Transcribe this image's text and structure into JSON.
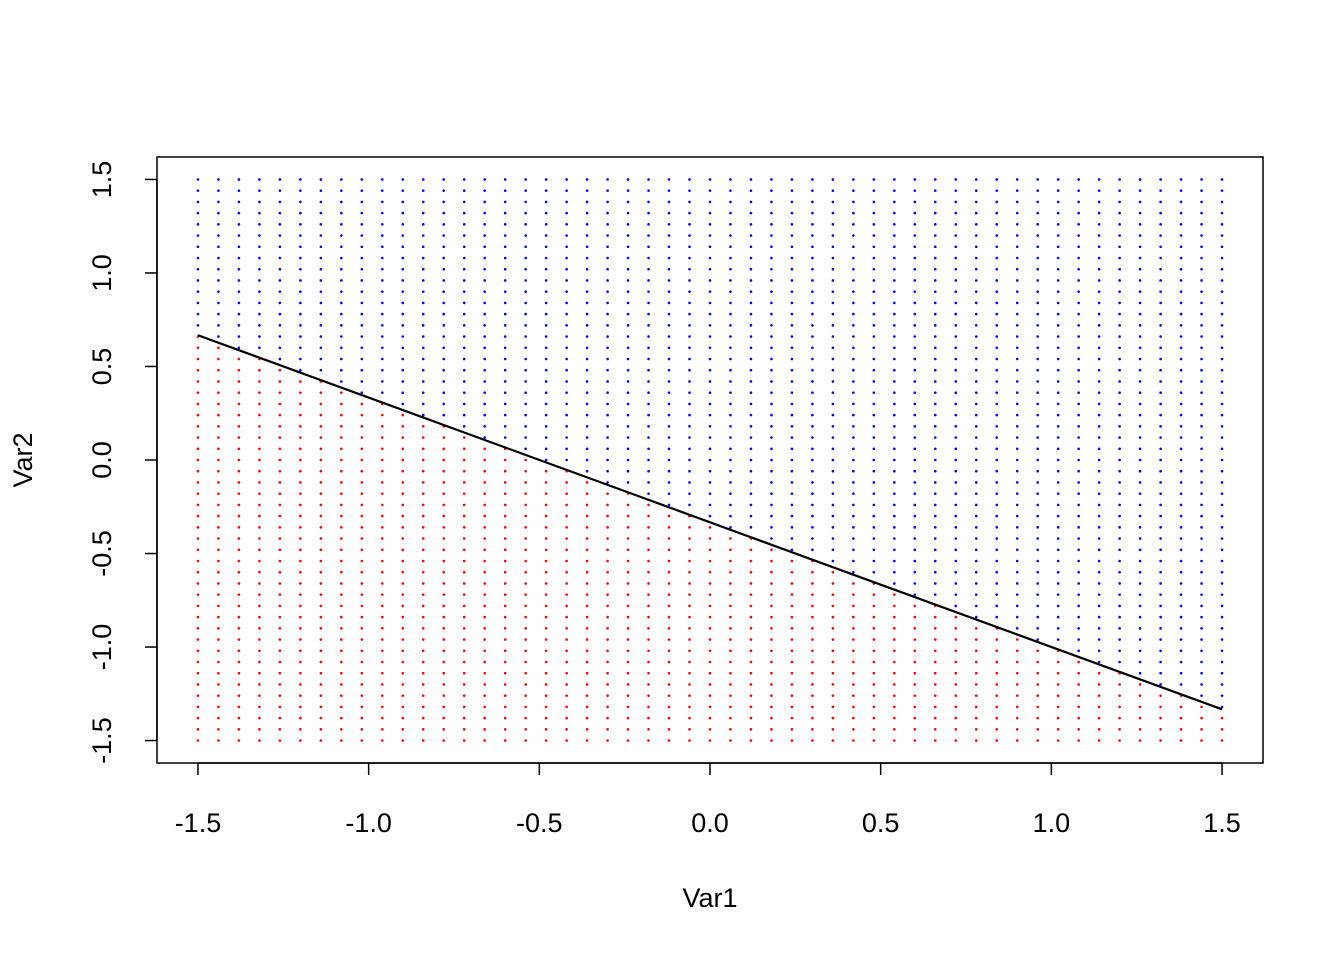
{
  "chart_data": {
    "type": "scatter",
    "xlabel": "Var1",
    "ylabel": "Var2",
    "grid_x": [
      -1.5,
      -1.44,
      -1.38,
      -1.32,
      -1.26,
      -1.2,
      -1.14,
      -1.08,
      -1.02,
      -0.96,
      -0.9,
      -0.84,
      -0.78,
      -0.72,
      -0.66,
      -0.6,
      -0.54,
      -0.48,
      -0.42,
      -0.36,
      -0.3,
      -0.24,
      -0.18,
      -0.12,
      -0.06,
      0,
      0.06,
      0.12,
      0.18,
      0.24,
      0.3,
      0.36,
      0.42,
      0.48,
      0.54,
      0.6,
      0.66,
      0.72,
      0.78,
      0.84,
      0.9,
      0.96,
      1.02,
      1.08,
      1.14,
      1.2,
      1.26,
      1.32,
      1.38,
      1.44,
      1.5
    ],
    "grid_y": [
      -1.5,
      -1.44,
      -1.38,
      -1.32,
      -1.26,
      -1.2,
      -1.14,
      -1.08,
      -1.02,
      -0.96,
      -0.9,
      -0.84,
      -0.78,
      -0.72,
      -0.66,
      -0.6,
      -0.54,
      -0.48,
      -0.42,
      -0.36,
      -0.3,
      -0.24,
      -0.18,
      -0.12,
      -0.06,
      0,
      0.06,
      0.12,
      0.18,
      0.24,
      0.3,
      0.36,
      0.42,
      0.48,
      0.54,
      0.6,
      0.66,
      0.72,
      0.78,
      0.84,
      0.9,
      0.96,
      1.02,
      1.08,
      1.14,
      1.2,
      1.26,
      1.32,
      1.38,
      1.44,
      1.5
    ],
    "above_color": "#0000ff",
    "below_color": "#ff0000",
    "line": {
      "x": [
        -1.5,
        1.5
      ],
      "y": [
        0.667,
        -1.333
      ],
      "color": "#000000"
    },
    "xlim": [
      -1.62,
      1.62
    ],
    "ylim": [
      -1.62,
      1.62
    ],
    "xticks": [
      -1.5,
      {
        "value": -1,
        "label": "-1.0"
      },
      -0.5,
      {
        "value": 0,
        "label": "0.0"
      },
      0.5,
      {
        "value": 1,
        "label": "1.0"
      },
      1.5
    ],
    "yticks": [
      -1.5,
      {
        "value": -1,
        "label": "-1.0"
      },
      -0.5,
      {
        "value": 0,
        "label": "0.0"
      },
      0.5,
      {
        "value": 1,
        "label": "1.0"
      },
      1.5
    ]
  }
}
